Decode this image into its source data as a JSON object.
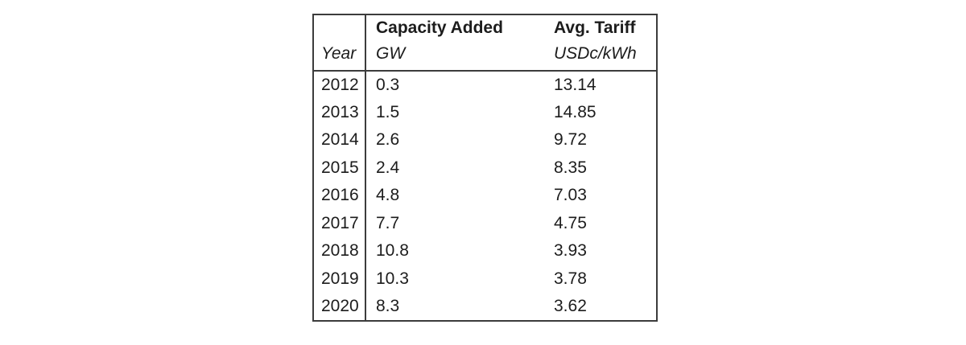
{
  "page": {
    "background_color": "#ffffff",
    "border_color": "#3c3c3c",
    "text_color": "#1c1c1c"
  },
  "table": {
    "header": {
      "year_label": "Year",
      "capacity_title": "Capacity Added",
      "capacity_unit": "GW",
      "tariff_title": "Avg. Tariff",
      "tariff_unit": "USDc/kWh"
    },
    "rows": [
      {
        "year": "2012",
        "capacity_gw": "0.3",
        "avg_tariff": "13.14"
      },
      {
        "year": "2013",
        "capacity_gw": "1.5",
        "avg_tariff": "14.85"
      },
      {
        "year": "2014",
        "capacity_gw": "2.6",
        "avg_tariff": "9.72"
      },
      {
        "year": "2015",
        "capacity_gw": "2.4",
        "avg_tariff": "8.35"
      },
      {
        "year": "2016",
        "capacity_gw": "4.8",
        "avg_tariff": "7.03"
      },
      {
        "year": "2017",
        "capacity_gw": "7.7",
        "avg_tariff": "4.75"
      },
      {
        "year": "2018",
        "capacity_gw": "10.8",
        "avg_tariff": "3.93"
      },
      {
        "year": "2019",
        "capacity_gw": "10.3",
        "avg_tariff": "3.78"
      },
      {
        "year": "2020",
        "capacity_gw": "8.3",
        "avg_tariff": "3.62"
      }
    ]
  },
  "chart_data": {
    "type": "table",
    "title": "",
    "columns": [
      "Year",
      "Capacity Added (GW)",
      "Avg. Tariff (USDc/kWh)"
    ],
    "x": [
      2012,
      2013,
      2014,
      2015,
      2016,
      2017,
      2018,
      2019,
      2020
    ],
    "series": [
      {
        "name": "Capacity Added (GW)",
        "values": [
          0.3,
          1.5,
          2.6,
          2.4,
          4.8,
          7.7,
          10.8,
          10.3,
          8.3
        ]
      },
      {
        "name": "Avg. Tariff (USDc/kWh)",
        "values": [
          13.14,
          14.85,
          9.72,
          8.35,
          7.03,
          4.75,
          3.93,
          3.78,
          3.62
        ]
      }
    ],
    "layout": {
      "grid": "off",
      "legend": "none",
      "style": "bordered-table"
    }
  }
}
